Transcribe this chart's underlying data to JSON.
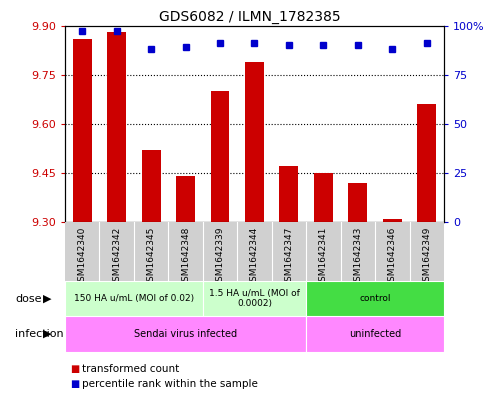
{
  "title": "GDS6082 / ILMN_1782385",
  "samples": [
    "GSM1642340",
    "GSM1642342",
    "GSM1642345",
    "GSM1642348",
    "GSM1642339",
    "GSM1642344",
    "GSM1642347",
    "GSM1642341",
    "GSM1642343",
    "GSM1642346",
    "GSM1642349"
  ],
  "transformed_count": [
    9.86,
    9.88,
    9.52,
    9.44,
    9.7,
    9.79,
    9.47,
    9.45,
    9.42,
    9.31,
    9.66
  ],
  "percentile_rank": [
    97,
    97,
    88,
    89,
    91,
    91,
    90,
    90,
    90,
    88,
    91
  ],
  "ylim_left": [
    9.3,
    9.9
  ],
  "ylim_right": [
    0,
    100
  ],
  "yticks_left": [
    9.3,
    9.45,
    9.6,
    9.75,
    9.9
  ],
  "yticks_right": [
    0,
    25,
    50,
    75,
    100
  ],
  "bar_color": "#cc0000",
  "dot_color": "#0000cc",
  "bar_width": 0.55,
  "dose_groups": [
    {
      "label": "150 HA u/mL (MOI of 0.02)",
      "start": 0,
      "end": 4,
      "color": "#ccffcc"
    },
    {
      "label": "1.5 HA u/mL (MOI of\n0.0002)",
      "start": 4,
      "end": 7,
      "color": "#ccffcc"
    },
    {
      "label": "control",
      "start": 7,
      "end": 11,
      "color": "#44dd44"
    }
  ],
  "infection_groups": [
    {
      "label": "Sendai virus infected",
      "start": 0,
      "end": 7,
      "color": "#ff88ff"
    },
    {
      "label": "uninfected",
      "start": 7,
      "end": 11,
      "color": "#ff88ff"
    }
  ],
  "legend_items": [
    {
      "label": "transformed count",
      "color": "#cc0000"
    },
    {
      "label": "percentile rank within the sample",
      "color": "#0000cc"
    }
  ],
  "sample_bg_color": "#d0d0d0",
  "grid_color": "#000000",
  "tick_label_color_left": "#cc0000",
  "tick_label_color_right": "#0000cc"
}
